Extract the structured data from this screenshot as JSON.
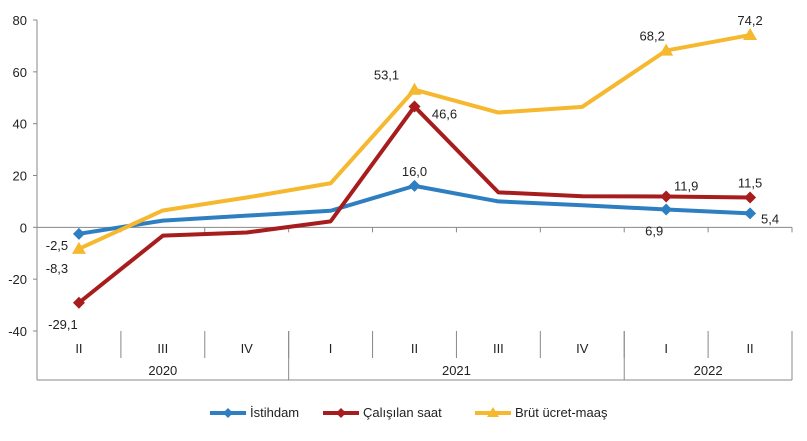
{
  "chart_data": {
    "type": "line",
    "categories": [
      "II",
      "III",
      "IV",
      "I",
      "II",
      "III",
      "IV",
      "I",
      "II"
    ],
    "year_groups": [
      {
        "label": "2020",
        "count": 3
      },
      {
        "label": "2021",
        "count": 4
      },
      {
        "label": "2022",
        "count": 2
      }
    ],
    "ylim": [
      -40,
      80
    ],
    "yticks": [
      -40,
      -20,
      0,
      20,
      40,
      60,
      80
    ],
    "legend_position": "bottom",
    "series": [
      {
        "name": "İstihdam",
        "color": "#2E7FC1",
        "marker": "diamond",
        "values": [
          -2.5,
          2.6,
          4.5,
          6.4,
          16.0,
          10.0,
          8.5,
          6.9,
          5.4
        ],
        "labels": [
          "-2,5",
          null,
          null,
          null,
          "16,0",
          null,
          null,
          "6,9",
          "5,4"
        ]
      },
      {
        "name": "Çalışılan saat",
        "color": "#A71C1C",
        "marker": "diamond",
        "values": [
          -29.1,
          -3.2,
          -2.0,
          2.3,
          46.6,
          13.5,
          12.0,
          11.9,
          11.5
        ],
        "labels": [
          "-29,1",
          null,
          null,
          null,
          "46,6",
          null,
          null,
          "11,9",
          "11,5"
        ]
      },
      {
        "name": "Brüt ücret-maaş",
        "color": "#F5B82E",
        "marker": "triangle",
        "values": [
          -8.3,
          6.5,
          11.5,
          17.0,
          53.1,
          44.3,
          46.5,
          68.2,
          74.2
        ],
        "labels": [
          "-8,3",
          null,
          null,
          null,
          "53,1",
          null,
          null,
          "68,2",
          "74,2"
        ]
      }
    ]
  }
}
